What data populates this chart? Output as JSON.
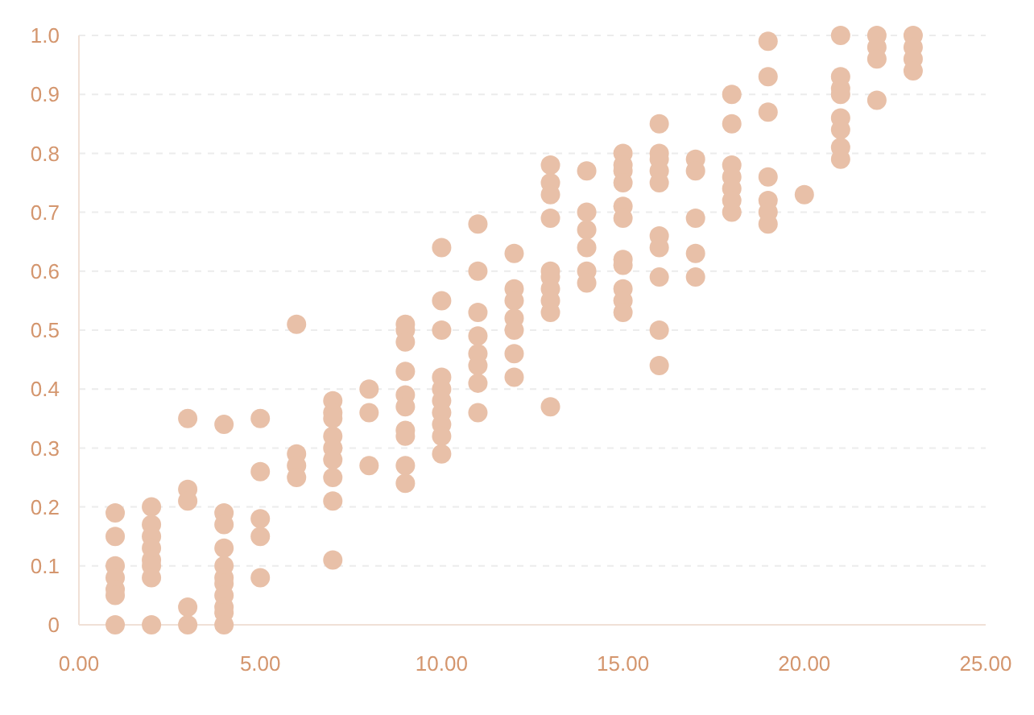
{
  "chart_data": {
    "type": "scatter",
    "color": "#e8c0a8",
    "marker": "circle",
    "grid": "y",
    "xlim": [
      0,
      25
    ],
    "ylim": [
      0,
      1
    ],
    "xticks": [
      {
        "value": 0,
        "label": "0.00"
      },
      {
        "value": 5,
        "label": "5.00"
      },
      {
        "value": 10,
        "label": "10.00"
      },
      {
        "value": 15,
        "label": "15.00"
      },
      {
        "value": 20,
        "label": "20.00"
      },
      {
        "value": 25,
        "label": "25.00"
      }
    ],
    "yticks": [
      0,
      0.1,
      0.2,
      0.3,
      0.4,
      0.5,
      0.6,
      0.7,
      0.8,
      0.9,
      {
        "value": 1,
        "label": "1.0"
      }
    ],
    "x": [
      1,
      1,
      1,
      1,
      1,
      1,
      1,
      2,
      2,
      2,
      2,
      2,
      2,
      2,
      2,
      3,
      3,
      3,
      3,
      3,
      4,
      4,
      4,
      4,
      4,
      4,
      4,
      4,
      4,
      4,
      4,
      5,
      5,
      5,
      5,
      5,
      6,
      6,
      6,
      6,
      7,
      7,
      7,
      7,
      7,
      7,
      7,
      7,
      7,
      8,
      8,
      8,
      9,
      9,
      9,
      9,
      9,
      9,
      9,
      9,
      9,
      9,
      10,
      10,
      10,
      10,
      10,
      10,
      10,
      10,
      10,
      10,
      11,
      11,
      11,
      11,
      11,
      11,
      11,
      11,
      12,
      12,
      12,
      12,
      12,
      12,
      12,
      13,
      13,
      13,
      13,
      13,
      13,
      13,
      13,
      13,
      13,
      14,
      14,
      14,
      14,
      14,
      14,
      15,
      15,
      15,
      15,
      15,
      15,
      15,
      15,
      15,
      15,
      15,
      16,
      16,
      16,
      16,
      16,
      16,
      16,
      16,
      16,
      16,
      17,
      17,
      17,
      17,
      17,
      18,
      18,
      18,
      18,
      18,
      18,
      18,
      19,
      19,
      19,
      19,
      19,
      19,
      19,
      20,
      21,
      21,
      21,
      21,
      21,
      21,
      21,
      21,
      22,
      22,
      22,
      22,
      23,
      23,
      23,
      23
    ],
    "values": [
      0.19,
      0.15,
      0.1,
      0.08,
      0.06,
      0.05,
      0,
      0.2,
      0.17,
      0.15,
      0.13,
      0.11,
      0.1,
      0.08,
      0,
      0.35,
      0.23,
      0.21,
      0.03,
      0,
      0.34,
      0.19,
      0.17,
      0.13,
      0.1,
      0.08,
      0.07,
      0.05,
      0.03,
      0.02,
      0,
      0.35,
      0.26,
      0.18,
      0.15,
      0.08,
      0.51,
      0.29,
      0.27,
      0.25,
      0.38,
      0.36,
      0.35,
      0.32,
      0.3,
      0.28,
      0.25,
      0.21,
      0.11,
      0.4,
      0.36,
      0.27,
      0.51,
      0.5,
      0.48,
      0.43,
      0.39,
      0.37,
      0.33,
      0.32,
      0.27,
      0.24,
      0.64,
      0.55,
      0.5,
      0.42,
      0.4,
      0.38,
      0.36,
      0.34,
      0.32,
      0.29,
      0.68,
      0.6,
      0.53,
      0.49,
      0.46,
      0.44,
      0.41,
      0.36,
      0.63,
      0.57,
      0.55,
      0.52,
      0.5,
      0.46,
      0.42,
      0.78,
      0.75,
      0.73,
      0.69,
      0.6,
      0.59,
      0.57,
      0.55,
      0.53,
      0.37,
      0.77,
      0.7,
      0.67,
      0.64,
      0.6,
      0.58,
      0.8,
      0.78,
      0.77,
      0.75,
      0.71,
      0.69,
      0.62,
      0.61,
      0.57,
      0.55,
      0.53,
      0.85,
      0.8,
      0.79,
      0.77,
      0.75,
      0.66,
      0.64,
      0.59,
      0.5,
      0.44,
      0.79,
      0.77,
      0.69,
      0.63,
      0.59,
      0.9,
      0.85,
      0.78,
      0.76,
      0.74,
      0.72,
      0.7,
      0.99,
      0.93,
      0.87,
      0.76,
      0.72,
      0.7,
      0.68,
      0.73,
      1,
      0.93,
      0.91,
      0.9,
      0.86,
      0.84,
      0.81,
      0.79,
      1,
      0.98,
      0.96,
      0.89,
      1,
      0.98,
      0.96,
      0.94
    ]
  }
}
